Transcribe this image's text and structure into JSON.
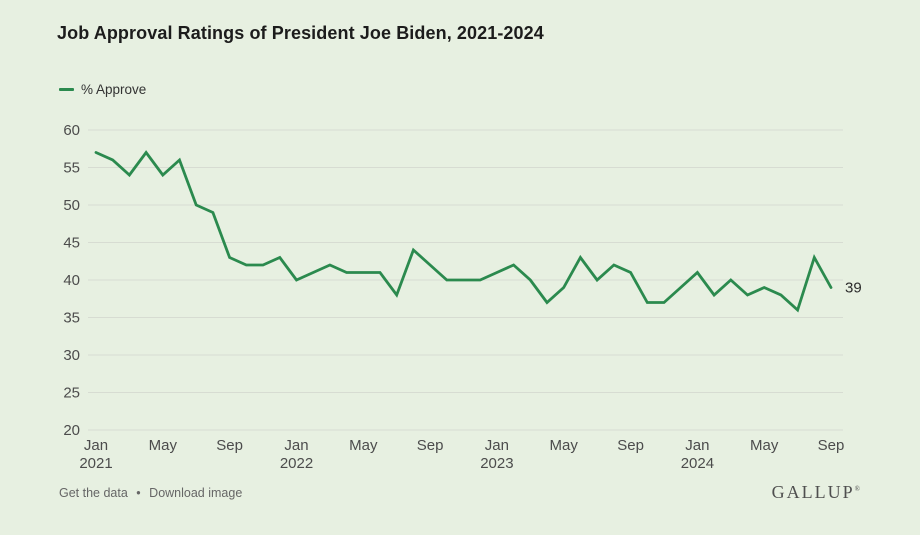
{
  "title": "Job Approval Ratings of President Joe Biden, 2021-2024",
  "legend": {
    "label": "% Approve"
  },
  "footer": {
    "get_data_label": "Get the data",
    "separator": "•",
    "download_label": "Download image",
    "brand": "GALLUP",
    "brand_mark": "®"
  },
  "colors": {
    "background": "#e7f0e1",
    "line": "#2b8a4e",
    "gridline": "#d7dcd2",
    "title_text": "#1c1c1c",
    "axis_text": "#4c4c4c",
    "legend_text": "#333333",
    "footer_text": "#666666",
    "brand_text": "#4f4f4f",
    "end_label_text": "#2b2b2b"
  },
  "chart_data": {
    "type": "line",
    "title": "Job Approval Ratings of President Joe Biden, 2021-2024",
    "xlabel": "",
    "ylabel": "% Approve",
    "ylim": [
      20,
      60
    ],
    "yticks": [
      60,
      55,
      50,
      45,
      40,
      35,
      30,
      25,
      20
    ],
    "grid": true,
    "legend_position": "top-left",
    "end_label": "39",
    "x": [
      "Jan 2021",
      "Feb 2021",
      "Mar 2021",
      "Apr 2021",
      "May 2021",
      "Jun 2021",
      "Jul 2021",
      "Aug 2021",
      "Sep 2021",
      "Oct 2021",
      "Nov 2021",
      "Dec 2021",
      "Jan 2022",
      "Feb 2022",
      "Mar 2022",
      "Apr 2022",
      "May 2022",
      "Jun 2022",
      "Jul 2022",
      "Aug 2022",
      "Sep 2022",
      "Oct 2022",
      "Nov 2022",
      "Dec 2022",
      "Jan 2023",
      "Feb 2023",
      "Mar 2023",
      "Apr 2023",
      "May 2023",
      "Jun 2023",
      "Jul 2023",
      "Aug 2023",
      "Sep 2023",
      "Oct 2023",
      "Nov 2023",
      "Dec 2023",
      "Jan 2024",
      "Feb 2024",
      "Mar 2024",
      "Apr 2024",
      "May 2024",
      "Jun 2024",
      "Jul 2024",
      "Aug 2024",
      "Sep 2024"
    ],
    "series": [
      {
        "name": "% Approve",
        "values": [
          57,
          56,
          54,
          57,
          54,
          56,
          50,
          49,
          43,
          42,
          42,
          43,
          40,
          41,
          42,
          41,
          41,
          41,
          38,
          44,
          42,
          40,
          40,
          40,
          41,
          42,
          40,
          37,
          39,
          43,
          40,
          42,
          41,
          37,
          37,
          39,
          41,
          38,
          40,
          38,
          39,
          38,
          36,
          43,
          39
        ]
      }
    ],
    "xticks": [
      {
        "index": 0,
        "label": "Jan",
        "year": "2021"
      },
      {
        "index": 4,
        "label": "May"
      },
      {
        "index": 8,
        "label": "Sep"
      },
      {
        "index": 12,
        "label": "Jan",
        "year": "2022"
      },
      {
        "index": 16,
        "label": "May"
      },
      {
        "index": 20,
        "label": "Sep"
      },
      {
        "index": 24,
        "label": "Jan",
        "year": "2023"
      },
      {
        "index": 28,
        "label": "May"
      },
      {
        "index": 32,
        "label": "Sep"
      },
      {
        "index": 36,
        "label": "Jan",
        "year": "2024"
      },
      {
        "index": 40,
        "label": "May"
      },
      {
        "index": 44,
        "label": "Sep"
      }
    ]
  }
}
